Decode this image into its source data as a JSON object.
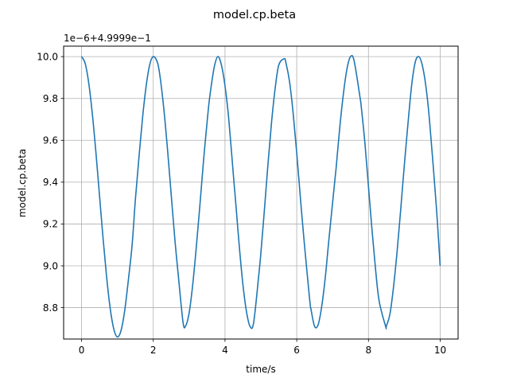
{
  "chart_data": {
    "type": "line",
    "title": "model.cp.beta",
    "xlabel": "time/s",
    "ylabel": "model.cp.beta",
    "y_offset_label": "1e−6+4.9999e−1",
    "xlim": [
      -0.5,
      10.5
    ],
    "ylim": [
      8.65,
      10.05
    ],
    "xticks": [
      0,
      2,
      4,
      6,
      8,
      10
    ],
    "xtick_labels": [
      "0",
      "2",
      "4",
      "6",
      "8",
      "10"
    ],
    "yticks": [
      8.8,
      9.0,
      9.2,
      9.4,
      9.6,
      9.8,
      10.0
    ],
    "ytick_labels": [
      "8.8",
      "9.0",
      "9.2",
      "9.4",
      "9.6",
      "9.8",
      "10.0"
    ],
    "grid": true,
    "legend": false,
    "color": "#1f77b4",
    "series": [
      {
        "x": [
          0.0,
          0.1,
          0.2,
          0.3,
          0.4,
          0.5,
          0.6,
          0.7,
          0.8,
          0.9,
          1.0,
          1.1,
          1.2,
          1.3,
          1.41,
          1.5,
          1.6,
          1.7,
          1.8,
          1.9,
          2.0,
          2.12,
          2.2,
          2.3,
          2.4,
          2.5,
          2.6,
          2.7,
          2.83,
          2.9,
          3.0,
          3.1,
          3.2,
          3.3,
          3.4,
          3.53,
          3.6,
          3.7,
          3.8,
          3.9,
          4.0,
          4.1,
          4.24,
          4.3,
          4.4,
          4.5,
          4.6,
          4.7,
          4.8,
          4.95,
          5.0,
          5.1,
          5.2,
          5.3,
          5.4,
          5.5,
          5.65,
          5.7,
          5.8,
          5.9,
          6.0,
          6.1,
          6.2,
          6.36,
          6.4,
          6.5,
          6.6,
          6.7,
          6.8,
          6.9,
          7.07,
          7.1,
          7.2,
          7.3,
          7.4,
          7.5,
          7.6,
          7.77,
          7.8,
          7.9,
          8.0,
          8.1,
          8.2,
          8.3,
          8.48,
          8.5,
          8.6,
          8.7,
          8.8,
          8.9,
          9.0,
          9.19,
          9.3,
          9.4,
          9.5,
          9.6,
          9.7,
          9.89,
          10.0
        ],
        "y": [
          10.0,
          9.968,
          9.874,
          9.727,
          9.543,
          9.337,
          9.131,
          8.944,
          8.795,
          8.697,
          8.66,
          8.69,
          8.782,
          8.924,
          9.1,
          9.315,
          9.517,
          9.706,
          9.858,
          9.961,
          10.0,
          9.97,
          9.89,
          9.74,
          9.55,
          9.34,
          9.13,
          8.95,
          8.73,
          8.712,
          8.775,
          8.91,
          9.09,
          9.29,
          9.5,
          9.74,
          9.84,
          9.95,
          10.0,
          9.96,
          9.86,
          9.71,
          9.42,
          9.3,
          9.09,
          8.91,
          8.78,
          8.71,
          8.73,
          8.97,
          9.06,
          9.27,
          9.49,
          9.69,
          9.85,
          9.96,
          9.99,
          9.97,
          9.88,
          9.73,
          9.54,
          9.33,
          9.13,
          8.84,
          8.79,
          8.71,
          8.72,
          8.81,
          8.95,
          9.13,
          9.42,
          9.47,
          9.66,
          9.82,
          9.94,
          10.0,
          9.98,
          9.8,
          9.76,
          9.59,
          9.38,
          9.17,
          8.98,
          8.83,
          8.71,
          8.712,
          8.77,
          8.9,
          9.07,
          9.27,
          9.48,
          9.84,
          9.97,
          10.0,
          9.96,
          9.86,
          9.7,
          9.29,
          9.0
        ]
      }
    ]
  }
}
